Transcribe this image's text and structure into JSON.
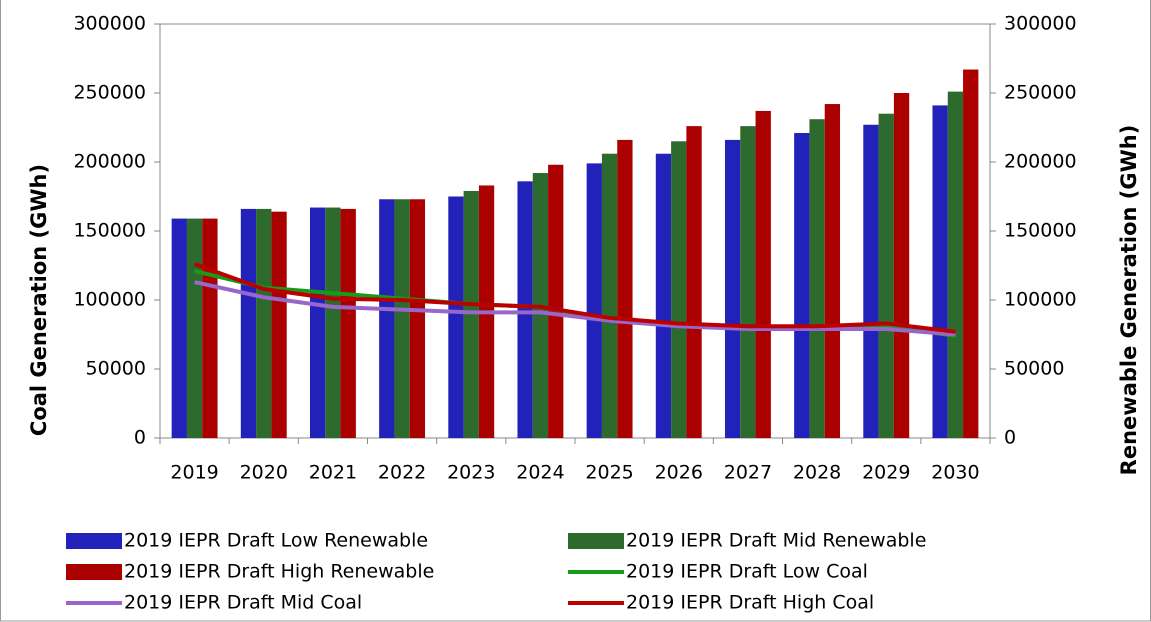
{
  "chart_data": {
    "type": "combo",
    "ylabel": "Coal Generation  (GWh)",
    "y2label": "Renewable Generation (GWh)",
    "categories": [
      "2019",
      "2020",
      "2021",
      "2022",
      "2023",
      "2024",
      "2025",
      "2026",
      "2027",
      "2028",
      "2029",
      "2030"
    ],
    "ylim": [
      0,
      300000
    ],
    "yticks": [
      0,
      50000,
      100000,
      150000,
      200000,
      250000,
      300000
    ],
    "y2lim": [
      0,
      300000
    ],
    "y2ticks": [
      0,
      50000,
      100000,
      150000,
      200000,
      250000,
      300000
    ],
    "series": [
      {
        "name": "2019 IEPR Draft Low Renewable",
        "type": "bar",
        "axis": "y2",
        "color": "#2222bb",
        "values": [
          159000,
          166000,
          167000,
          173000,
          175000,
          186000,
          199000,
          206000,
          216000,
          221000,
          227000,
          241000
        ]
      },
      {
        "name": "2019 IEPR Draft Mid Renewable",
        "type": "bar",
        "axis": "y2",
        "color": "#2d6a2d",
        "values": [
          159000,
          166000,
          167000,
          173000,
          179000,
          192000,
          206000,
          215000,
          226000,
          231000,
          235000,
          251000
        ]
      },
      {
        "name": "2019 IEPR Draft High Renewable",
        "type": "bar",
        "axis": "y2",
        "color": "#aa0000",
        "values": [
          159000,
          164000,
          166000,
          173000,
          183000,
          198000,
          216000,
          226000,
          237000,
          242000,
          250000,
          267000
        ]
      },
      {
        "name": "2019 IEPR Draft Low Coal",
        "type": "line",
        "color": "#1a9a1a",
        "values": [
          121000,
          109000,
          105000,
          101000,
          97000,
          95000,
          86000,
          82000,
          80000,
          80000,
          81000,
          74000
        ]
      },
      {
        "name": "2019 IEPR Draft Mid Coal",
        "type": "line",
        "color": "#9966cc",
        "values": [
          113000,
          102000,
          95000,
          93000,
          91000,
          91000,
          85000,
          81000,
          79000,
          79000,
          79000,
          75000
        ]
      },
      {
        "name": "2019 IEPR Draft High Coal",
        "type": "line",
        "color": "#bb0000",
        "values": [
          126000,
          108000,
          101000,
          100000,
          97000,
          95000,
          87000,
          83000,
          81000,
          81000,
          83000,
          77000
        ]
      }
    ]
  }
}
